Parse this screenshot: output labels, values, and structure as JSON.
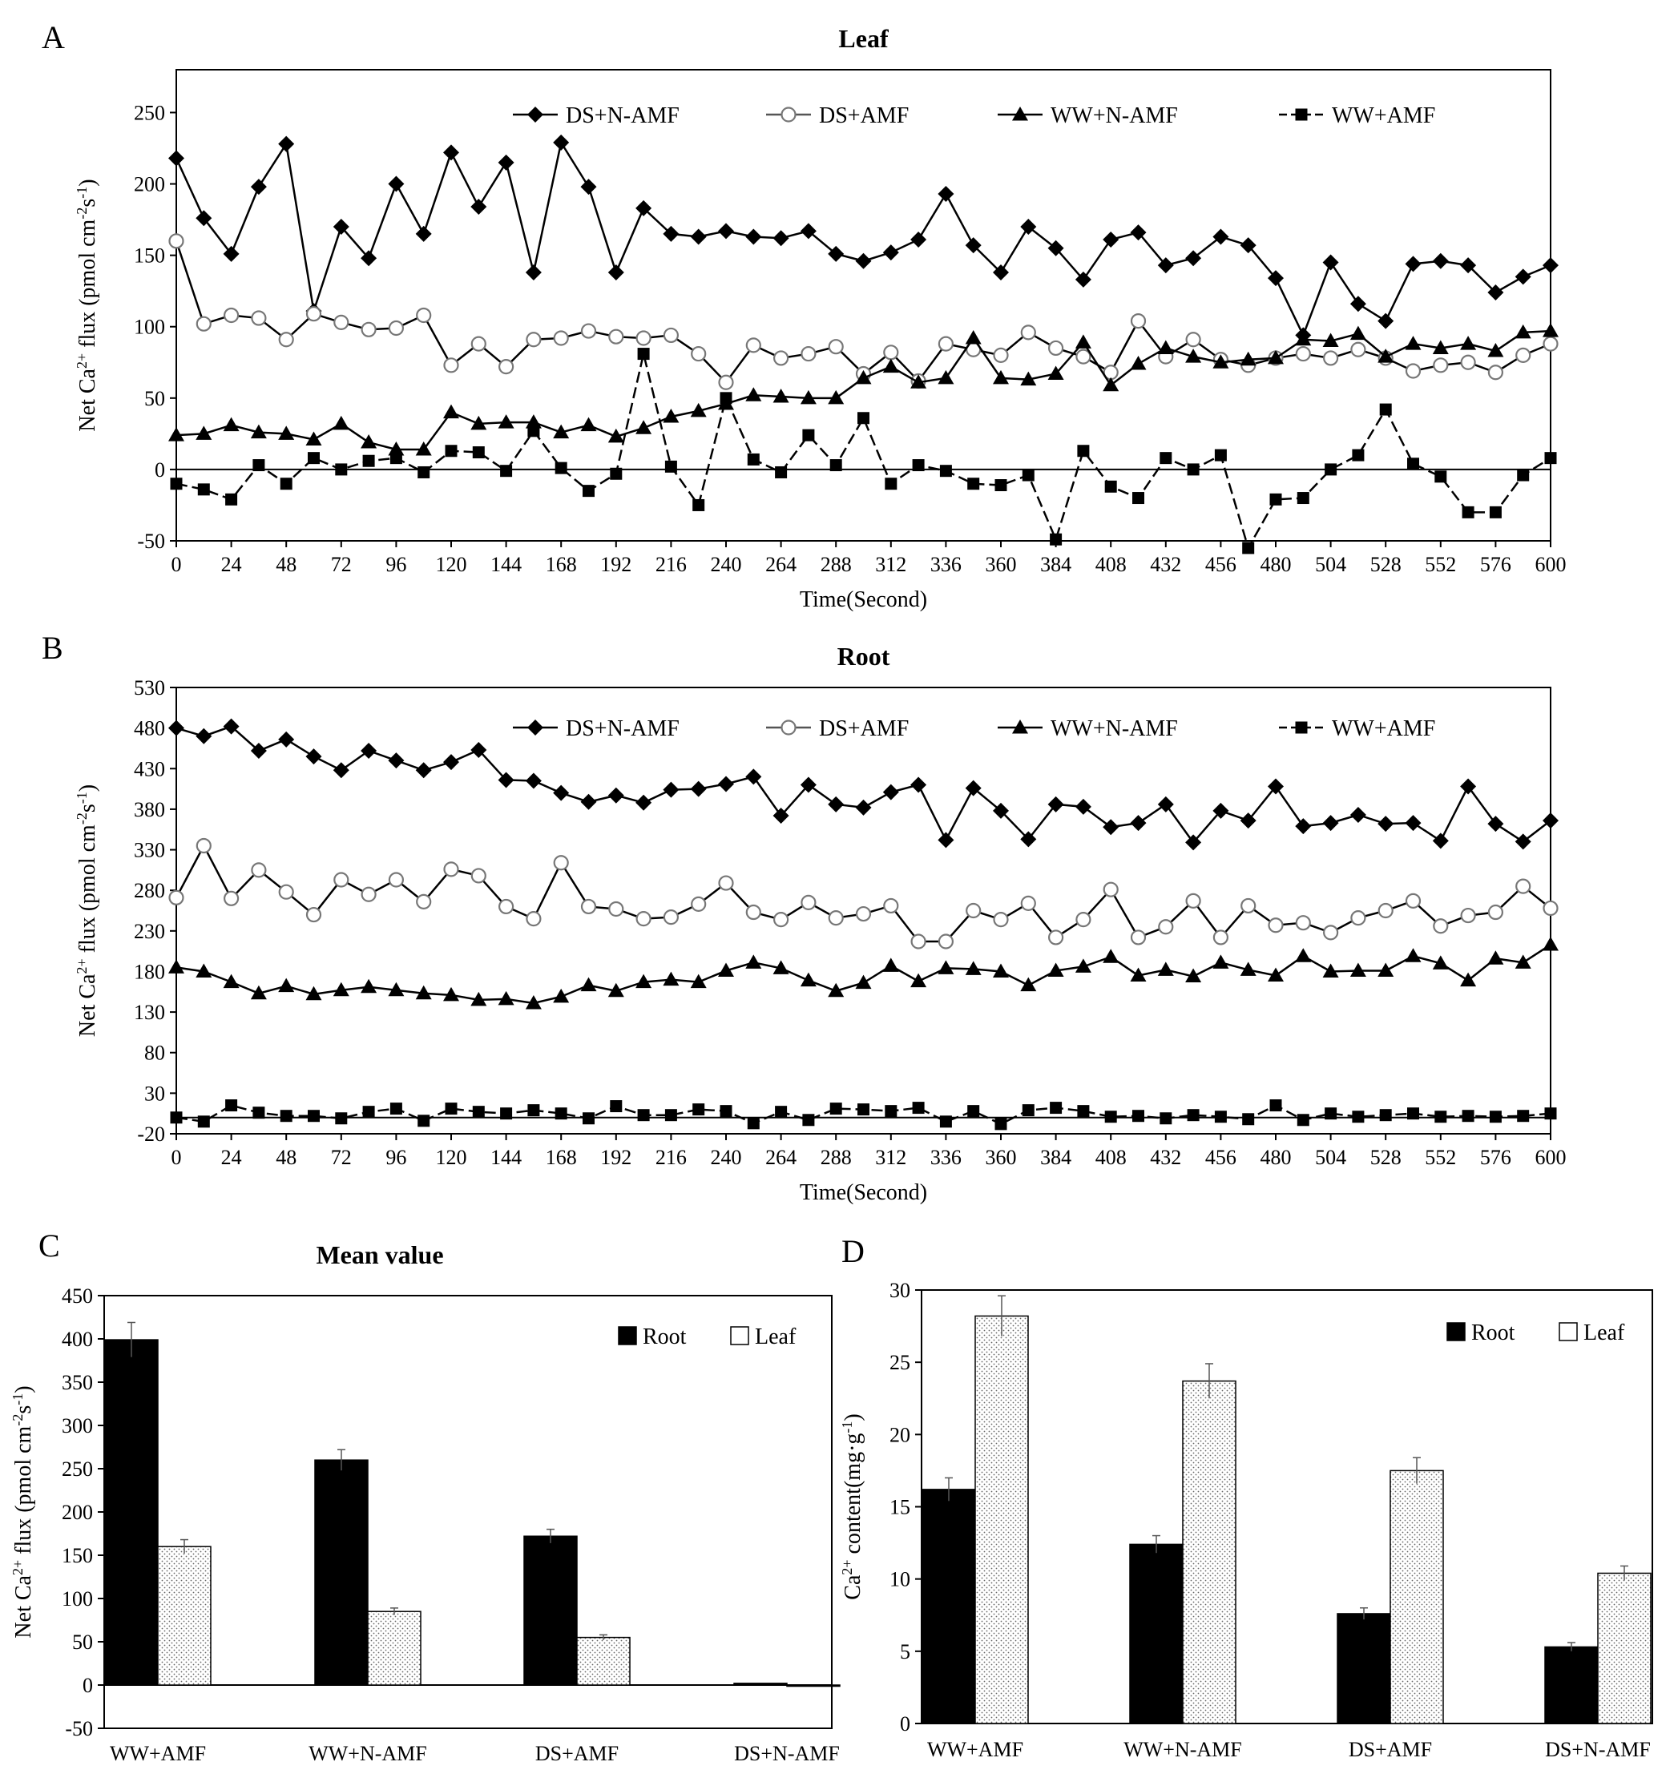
{
  "chart_data": [
    {
      "panel": "A",
      "type": "line",
      "title": "Leaf",
      "xlabel": "Time(Second)",
      "ylabel": "Net Ca²⁺ flux (pmol cm⁻²s⁻¹)",
      "ylabel_parts": {
        "pre": "Net Ca",
        "sup1": "2+",
        "mid": " flux (pmol cm",
        "sup2": "-2",
        "mid2": "s",
        "sup3": "-1",
        "post": ")"
      },
      "ylim": [
        -50,
        280
      ],
      "yticks": [
        -50,
        0,
        50,
        100,
        150,
        200,
        250
      ],
      "xlim": [
        0,
        600
      ],
      "xticks": [
        0,
        24,
        48,
        72,
        96,
        120,
        144,
        168,
        192,
        216,
        240,
        264,
        288,
        312,
        336,
        360,
        384,
        408,
        432,
        456,
        480,
        504,
        528,
        552,
        576,
        600
      ],
      "x_step": 12,
      "series": [
        {
          "name": "DS+N-AMF",
          "marker": "diamond",
          "values": [
            218,
            176,
            151,
            198,
            228,
            111,
            170,
            148,
            200,
            165,
            222,
            184,
            215,
            138,
            229,
            198,
            138,
            183,
            165,
            163,
            167,
            163,
            162,
            167,
            151,
            146,
            152,
            161,
            193,
            157,
            138,
            170,
            155,
            133,
            161,
            166,
            143,
            148,
            163,
            157,
            134,
            94,
            145,
            116,
            104,
            144,
            146,
            143,
            124,
            135,
            143
          ]
        },
        {
          "name": "DS+AMF",
          "marker": "open-circle",
          "values": [
            160,
            102,
            108,
            106,
            91,
            109,
            103,
            98,
            99,
            108,
            73,
            88,
            72,
            91,
            92,
            97,
            93,
            92,
            94,
            81,
            61,
            87,
            78,
            81,
            86,
            67,
            82,
            62,
            88,
            84,
            80,
            96,
            85,
            79,
            68,
            104,
            79,
            91,
            77,
            73,
            78,
            81,
            78,
            84,
            78,
            69,
            73,
            75,
            68,
            80,
            88
          ]
        },
        {
          "name": "WW+N-AMF",
          "marker": "triangle",
          "values": [
            24,
            25,
            31,
            26,
            25,
            21,
            32,
            19,
            14,
            14,
            40,
            32,
            33,
            33,
            26,
            31,
            23,
            29,
            37,
            41,
            46,
            52,
            51,
            50,
            50,
            64,
            72,
            61,
            64,
            92,
            64,
            63,
            67,
            89,
            59,
            74,
            85,
            79,
            75,
            77,
            78,
            91,
            90,
            95,
            79,
            88,
            85,
            88,
            83,
            96,
            97
          ]
        },
        {
          "name": "WW+AMF",
          "marker": "square",
          "values": [
            -10,
            -14,
            -21,
            3,
            -10,
            8,
            0,
            6,
            8,
            -2,
            13,
            12,
            -1,
            27,
            1,
            -15,
            -3,
            81,
            2,
            -25,
            50,
            7,
            -2,
            24,
            3,
            36,
            -10,
            3,
            -1,
            -10,
            -11,
            -4,
            -49,
            13,
            -12,
            -20,
            8,
            0,
            10,
            -55,
            -21,
            -20,
            0,
            10,
            42,
            4,
            -5,
            -30,
            -30,
            -4,
            8
          ]
        }
      ],
      "legend": "top"
    },
    {
      "panel": "B",
      "type": "line",
      "title": "Root",
      "xlabel": "Time(Second)",
      "ylabel": "Net Ca²⁺ flux (pmol cm⁻²s⁻¹)",
      "ylabel_parts": {
        "pre": "Net Ca",
        "sup1": "2+",
        "mid": " flux (pmol cm",
        "sup2": "-2",
        "mid2": "s",
        "sup3": "-1",
        "post": ")"
      },
      "ylim": [
        -20,
        530
      ],
      "yticks": [
        -20,
        30,
        80,
        130,
        180,
        230,
        280,
        330,
        380,
        430,
        480,
        530
      ],
      "xlim": [
        0,
        600
      ],
      "xticks": [
        0,
        24,
        48,
        72,
        96,
        120,
        144,
        168,
        192,
        216,
        240,
        264,
        288,
        312,
        336,
        360,
        384,
        408,
        432,
        456,
        480,
        504,
        528,
        552,
        576,
        600
      ],
      "x_step": 12,
      "series": [
        {
          "name": "DS+N-AMF",
          "marker": "diamond",
          "values": [
            480,
            470,
            482,
            452,
            466,
            445,
            428,
            452,
            440,
            428,
            438,
            453,
            416,
            415,
            400,
            389,
            397,
            388,
            404,
            405,
            411,
            420,
            372,
            410,
            386,
            382,
            401,
            410,
            342,
            406,
            378,
            343,
            386,
            383,
            358,
            363,
            386,
            339,
            378,
            366,
            408,
            359,
            363,
            373,
            362,
            363,
            341,
            408,
            362,
            340,
            366
          ]
        },
        {
          "name": "DS+AMF",
          "marker": "open-circle",
          "values": [
            271,
            335,
            270,
            305,
            278,
            250,
            293,
            275,
            293,
            266,
            306,
            298,
            260,
            245,
            314,
            260,
            257,
            245,
            247,
            263,
            289,
            253,
            244,
            265,
            246,
            251,
            261,
            217,
            217,
            255,
            244,
            264,
            222,
            244,
            281,
            222,
            235,
            267,
            222,
            261,
            237,
            240,
            228,
            246,
            255,
            267,
            236,
            249,
            253,
            285,
            258
          ]
        },
        {
          "name": "WW+N-AMF",
          "marker": "triangle",
          "values": [
            185,
            180,
            167,
            153,
            162,
            152,
            157,
            161,
            157,
            153,
            151,
            145,
            146,
            141,
            149,
            163,
            156,
            167,
            170,
            167,
            181,
            191,
            184,
            169,
            156,
            166,
            187,
            168,
            184,
            183,
            180,
            163,
            181,
            186,
            198,
            175,
            182,
            174,
            191,
            182,
            175,
            199,
            180,
            181,
            181,
            199,
            190,
            169,
            196,
            191,
            213
          ]
        },
        {
          "name": "WW+AMF",
          "marker": "square",
          "values": [
            0,
            -5,
            15,
            6,
            2,
            2,
            -1,
            7,
            11,
            -4,
            11,
            7,
            5,
            9,
            5,
            -1,
            14,
            3,
            3,
            10,
            8,
            -7,
            7,
            -3,
            11,
            10,
            8,
            12,
            -5,
            8,
            -8,
            9,
            12,
            8,
            1,
            2,
            -1,
            3,
            1,
            -2,
            15,
            -3,
            5,
            1,
            3,
            5,
            1,
            2,
            1,
            2,
            5
          ]
        }
      ],
      "legend": "top"
    },
    {
      "panel": "C",
      "type": "bar",
      "title": "Mean value",
      "xlabel": "",
      "ylabel": "Net Ca²⁺ flux (pmol cm⁻²s⁻¹)",
      "ylabel_parts": {
        "pre": "Net Ca",
        "sup1": "2+",
        "mid": " flux (pmol cm",
        "sup2": "-2",
        "mid2": "s",
        "sup3": "-1",
        "post": ")"
      },
      "ylim": [
        -50,
        450
      ],
      "yticks": [
        -50,
        0,
        50,
        100,
        150,
        200,
        250,
        300,
        350,
        400,
        450
      ],
      "categories": [
        "WW+AMF",
        "WW+N-AMF",
        "DS+AMF",
        "DS+N-AMF"
      ],
      "series": [
        {
          "name": "Root",
          "fill": "solid",
          "values": [
            399,
            260,
            172,
            2
          ],
          "errors": [
            20,
            12,
            8,
            0
          ]
        },
        {
          "name": "Leaf",
          "fill": "dotted",
          "values": [
            160,
            85,
            55,
            -1
          ],
          "errors": [
            8,
            4,
            3,
            0
          ]
        }
      ],
      "legend": "top-right"
    },
    {
      "panel": "D",
      "type": "bar",
      "title": "",
      "xlabel": "",
      "ylabel": "Ca²⁺ content(mg·g⁻¹)",
      "ylabel_parts": {
        "pre": "Ca",
        "sup1": "2+",
        "mid": " content(mg·g",
        "sup2": "-1",
        "mid2": "",
        "sup3": "",
        "post": ")"
      },
      "ylim": [
        0,
        30
      ],
      "yticks": [
        0,
        5,
        10,
        15,
        20,
        25,
        30
      ],
      "categories": [
        "WW+AMF",
        "WW+N-AMF",
        "DS+AMF",
        "DS+N-AMF"
      ],
      "series": [
        {
          "name": "Root",
          "fill": "solid",
          "values": [
            16.2,
            12.4,
            7.6,
            5.3
          ],
          "errors": [
            0.8,
            0.6,
            0.4,
            0.3
          ]
        },
        {
          "name": "Leaf",
          "fill": "dotted",
          "values": [
            28.2,
            23.7,
            17.5,
            10.4
          ],
          "errors": [
            1.4,
            1.2,
            0.9,
            0.5
          ]
        }
      ],
      "legend": "top-right"
    }
  ]
}
